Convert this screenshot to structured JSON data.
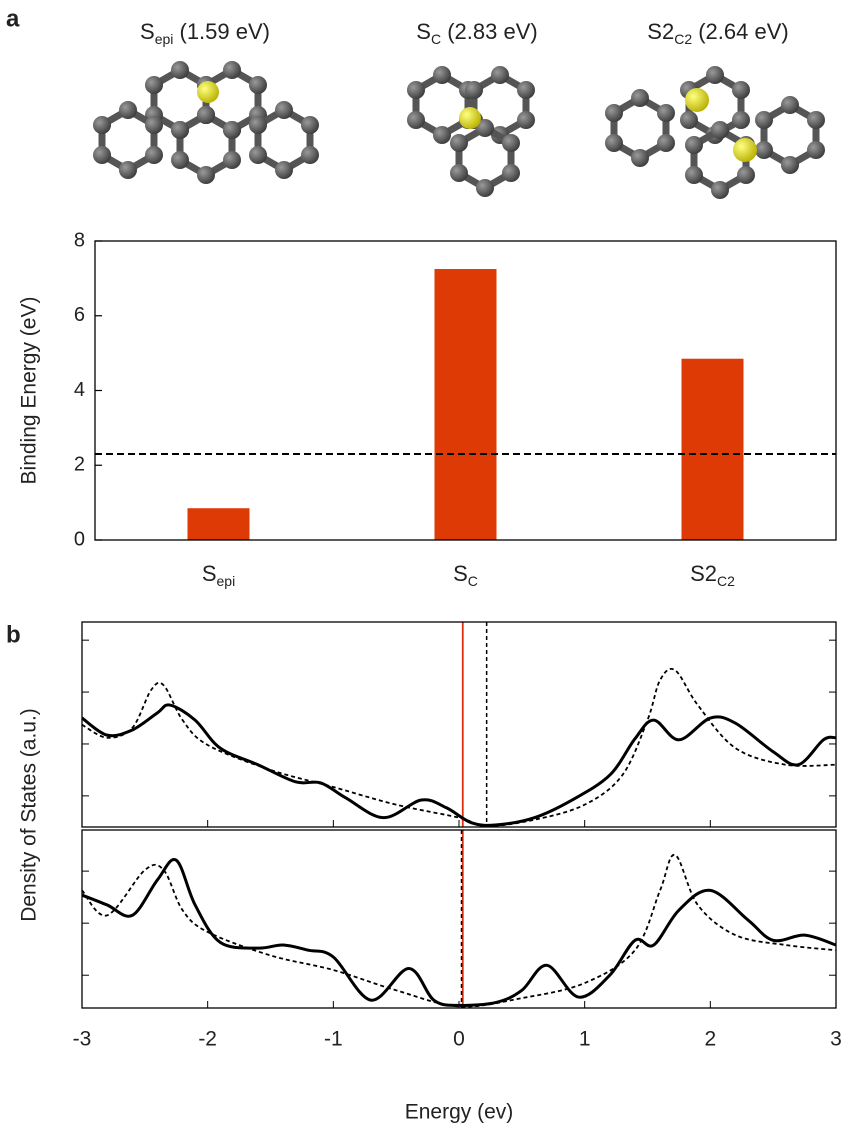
{
  "panel_labels": [
    "a",
    "b"
  ],
  "structures": [
    {
      "text": "S",
      "sub": "epi",
      "after": " (1.59 eV)"
    },
    {
      "text": "S",
      "sub": "C",
      "after": " (2.83 eV)"
    },
    {
      "text": "S2",
      "sub": "C2",
      "after": " (2.64 eV)"
    }
  ],
  "dos_ylabel": "Density of States (a.u.)",
  "chart_data": [
    {
      "type": "bar",
      "ylabel": "Binding Energy (eV)",
      "categories": [
        {
          "text": "S",
          "sub": "epi"
        },
        {
          "text": "S",
          "sub": "C"
        },
        {
          "text": "S2",
          "sub": "C2"
        }
      ],
      "values": [
        0.85,
        7.25,
        4.85
      ],
      "color": "#dd3a06",
      "ylim": [
        0,
        8
      ],
      "yticks": [
        0,
        2,
        4,
        6,
        8
      ],
      "hlines": [
        {
          "y": 2.3,
          "color": "#000000",
          "dashed": true
        }
      ]
    },
    {
      "type": "line",
      "xlim": [
        -3,
        3
      ],
      "xticks": [
        -3,
        -2,
        -1,
        0,
        1,
        2,
        3
      ],
      "xtick_labels": false,
      "ylim": [
        0.4,
        4.35
      ],
      "yticks": [
        1,
        2,
        3,
        4
      ],
      "ytick_labels": false,
      "series": [
        {
          "color": "#000000",
          "dashed": false,
          "x": [
            -3,
            -2.8,
            -2.6,
            -2.4,
            -2.3,
            -2.1,
            -1.9,
            -1.6,
            -1.3,
            -1.1,
            -0.9,
            -0.6,
            -0.3,
            -0.1,
            0.1,
            0.3,
            0.6,
            0.9,
            1.2,
            1.4,
            1.55,
            1.75,
            2.0,
            2.2,
            2.5,
            2.7,
            2.9,
            3.0
          ],
          "values": [
            2.5,
            2.17,
            2.27,
            2.6,
            2.75,
            2.46,
            1.92,
            1.6,
            1.27,
            1.25,
            0.96,
            0.58,
            0.92,
            0.77,
            0.48,
            0.44,
            0.58,
            0.92,
            1.4,
            2.1,
            2.46,
            2.08,
            2.5,
            2.4,
            1.85,
            1.6,
            2.08,
            2.12
          ]
        },
        {
          "color": "#000000",
          "dashed": true,
          "x": [
            -3,
            -2.8,
            -2.6,
            -2.45,
            -2.35,
            -2.2,
            -2.0,
            -1.5,
            -1.0,
            -0.5,
            0,
            0.22,
            0.6,
            1.0,
            1.3,
            1.5,
            1.6,
            1.72,
            1.9,
            2.2,
            2.6,
            3.0
          ],
          "values": [
            2.37,
            2.12,
            2.31,
            3.04,
            3.13,
            2.46,
            1.98,
            1.5,
            1.17,
            0.83,
            0.58,
            0.42,
            0.54,
            0.83,
            1.4,
            2.46,
            3.23,
            3.42,
            2.75,
            1.92,
            1.6,
            1.6
          ]
        }
      ],
      "vlines": [
        {
          "x": 0.03,
          "color": "#e03010",
          "dashed": false
        },
        {
          "x": 0.22,
          "color": "#000000",
          "dashed": true
        }
      ]
    },
    {
      "type": "line",
      "xlabel": "Energy (ev)",
      "xlim": [
        -3,
        3
      ],
      "xticks": [
        -3,
        -2,
        -1,
        0,
        1,
        2,
        3
      ],
      "xtick_labels": true,
      "ylim": [
        0.37,
        3.79
      ],
      "yticks": [
        1,
        2,
        3
      ],
      "ytick_labels": false,
      "series": [
        {
          "color": "#000000",
          "dashed": false,
          "x": [
            -3,
            -2.8,
            -2.6,
            -2.4,
            -2.25,
            -2.1,
            -1.9,
            -1.6,
            -1.4,
            -1.2,
            -1.0,
            -0.7,
            -0.4,
            -0.2,
            0,
            0.3,
            0.5,
            0.7,
            0.95,
            1.2,
            1.4,
            1.55,
            1.75,
            2.0,
            2.3,
            2.5,
            2.75,
            3.0
          ],
          "values": [
            2.54,
            2.35,
            2.15,
            2.83,
            3.21,
            2.35,
            1.63,
            1.52,
            1.58,
            1.48,
            1.35,
            0.52,
            1.13,
            0.52,
            0.42,
            0.48,
            0.71,
            1.19,
            0.58,
            1.0,
            1.67,
            1.58,
            2.25,
            2.63,
            2.06,
            1.67,
            1.77,
            1.58
          ]
        },
        {
          "color": "#000000",
          "dashed": true,
          "x": [
            -3,
            -2.8,
            -2.5,
            -2.35,
            -2.2,
            -2.0,
            -1.5,
            -1.0,
            -0.5,
            0,
            0.5,
            1.0,
            1.4,
            1.6,
            1.72,
            1.9,
            2.2,
            2.6,
            3.0
          ],
          "values": [
            2.63,
            2.15,
            3.02,
            3.02,
            2.25,
            1.83,
            1.38,
            1.1,
            0.71,
            0.4,
            0.56,
            0.85,
            1.48,
            2.63,
            3.31,
            2.35,
            1.77,
            1.58,
            1.48
          ]
        }
      ],
      "vlines": [
        {
          "x": 0.03,
          "color": "#e03010",
          "dashed": false
        },
        {
          "x": 0.02,
          "color": "#000000",
          "dashed": true
        }
      ]
    }
  ]
}
